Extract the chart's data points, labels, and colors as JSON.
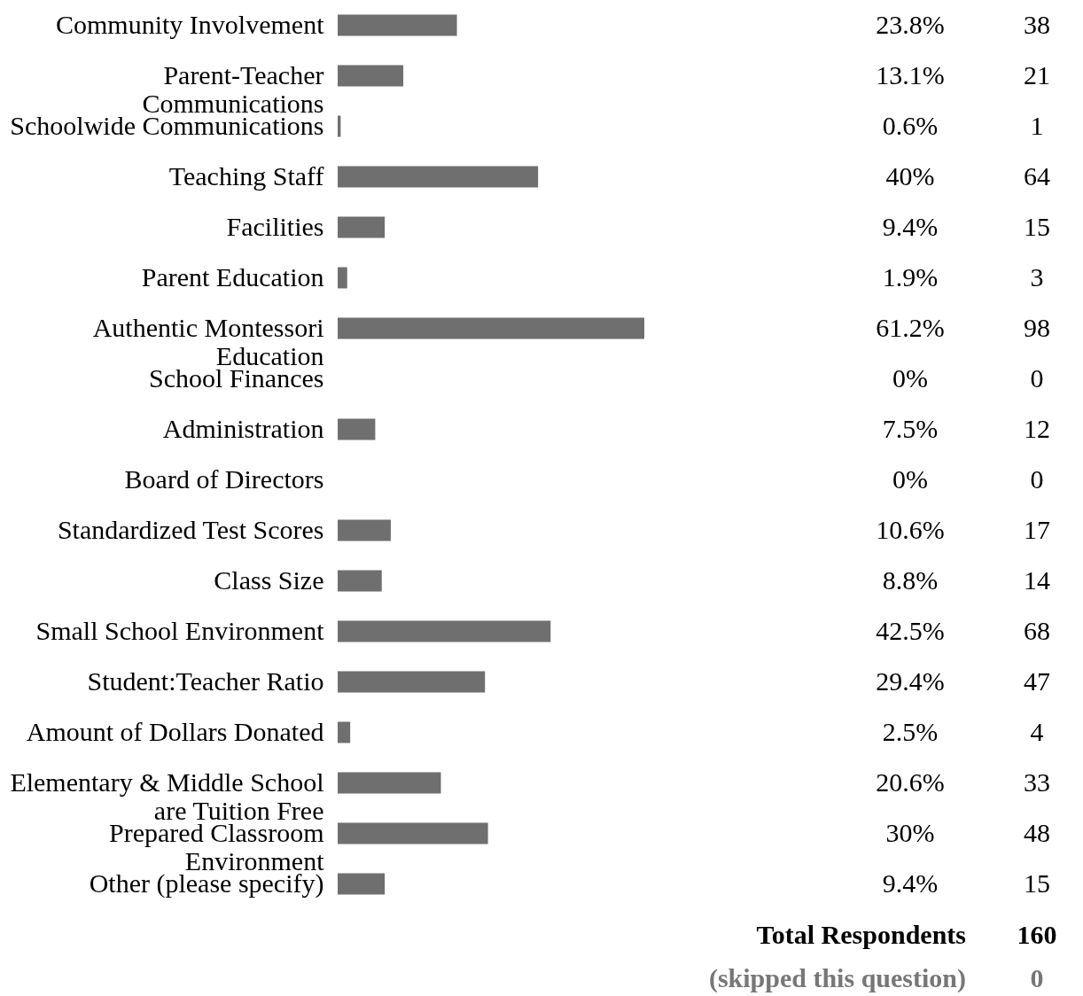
{
  "chart_data": {
    "type": "bar",
    "orientation": "horizontal",
    "color": "#6f6f6f",
    "categories": [
      "Community Involvement",
      "Parent-Teacher Communications",
      "Schoolwide Communications",
      "Teaching Staff",
      "Facilities",
      "Parent Education",
      "Authentic Montessori Education",
      "School Finances",
      "Administration",
      "Board of Directors",
      "Standardized Test Scores",
      "Class Size",
      "Small School Environment",
      "Student:Teacher Ratio",
      "Amount of Dollars Donated",
      "Elementary & Middle School are Tuition Free",
      "Prepared Classroom Environment",
      "Other (please specify)"
    ],
    "values": [
      23.8,
      13.1,
      0.6,
      40,
      9.4,
      1.9,
      61.2,
      0,
      7.5,
      0,
      10.6,
      8.8,
      42.5,
      29.4,
      2.5,
      20.6,
      30,
      9.4
    ],
    "value_labels": [
      "23.8%",
      "13.1%",
      "0.6%",
      "40%",
      "9.4%",
      "1.9%",
      "61.2%",
      "0%",
      "7.5%",
      "0%",
      "10.6%",
      "8.8%",
      "42.5%",
      "29.4%",
      "2.5%",
      "20.6%",
      "30%",
      "9.4%"
    ],
    "tick_labels": "y",
    "annotations": [
      "38",
      "21",
      "1",
      "64",
      "15",
      "3",
      "98",
      "0",
      "12",
      "0",
      "17",
      "14",
      "68",
      "47",
      "4",
      "33",
      "48",
      "15",
      "Total Respondents",
      "160",
      "(skipped this question)",
      "0"
    ]
  }
}
